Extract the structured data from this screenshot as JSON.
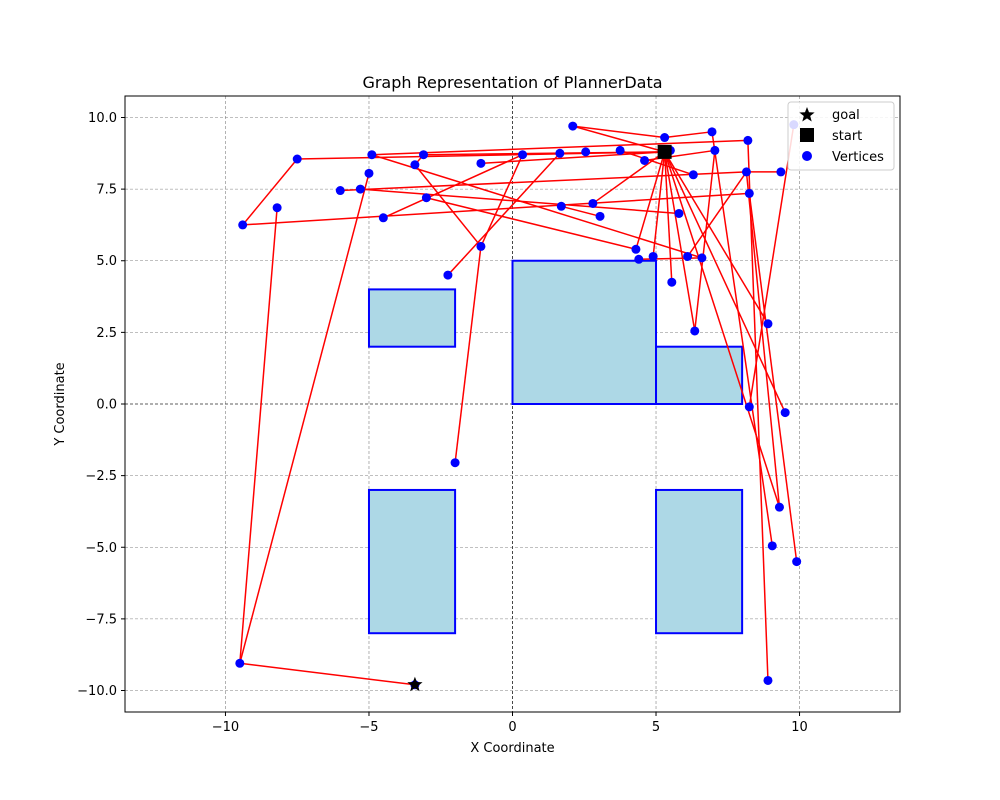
{
  "chart_data": {
    "type": "scatter",
    "title": "Graph Representation of PlannerData",
    "xlabel": "X Coordinate",
    "ylabel": "Y Coordinate",
    "xlim": [
      -13.5,
      13.5
    ],
    "ylim": [
      -10.75,
      10.75
    ],
    "xticks": [
      -10,
      -5,
      0,
      5,
      10
    ],
    "xtick_labels": [
      "−10",
      "−5",
      "0",
      "5",
      "10"
    ],
    "yticks": [
      -10,
      -7.5,
      -5,
      -2.5,
      0,
      2.5,
      5,
      7.5,
      10
    ],
    "ytick_labels": [
      "−10.0",
      "−7.5",
      "−5.0",
      "−2.5",
      "0.0",
      "2.5",
      "5.0",
      "7.5",
      "10.0"
    ],
    "grid": true,
    "legend_position": "top-right",
    "legend": [
      "goal",
      "start",
      "Vertices"
    ],
    "colors": {
      "edge": "#ff0000",
      "vertex_fill": "#0000ff",
      "obstacle_fill": "#add8e6",
      "obstacle_edge": "#0000ff",
      "grid": "#808080",
      "marker": "#000000"
    },
    "obstacles": [
      {
        "x": -5,
        "y": 2,
        "w": 3,
        "h": 2
      },
      {
        "x": 0,
        "y": 0,
        "w": 5,
        "h": 5
      },
      {
        "x": 5,
        "y": 0,
        "w": 3,
        "h": 2
      },
      {
        "x": -5,
        "y": -8,
        "w": 3,
        "h": 5
      },
      {
        "x": 5,
        "y": -8,
        "w": 3,
        "h": 5
      }
    ],
    "goal": [
      -3.4,
      -9.8
    ],
    "start": [
      5.3,
      8.8
    ],
    "vertices": [
      [
        -3.4,
        -9.8
      ],
      [
        -9.5,
        -9.05
      ],
      [
        -8.2,
        6.85
      ],
      [
        -9.4,
        6.25
      ],
      [
        -7.5,
        8.55
      ],
      [
        -6.0,
        7.45
      ],
      [
        -5.3,
        7.5
      ],
      [
        -5.0,
        8.05
      ],
      [
        -4.9,
        8.7
      ],
      [
        -4.5,
        6.5
      ],
      [
        -3.4,
        8.35
      ],
      [
        -3.1,
        8.7
      ],
      [
        -3.0,
        7.2
      ],
      [
        -2.25,
        4.5
      ],
      [
        -2.0,
        -2.05
      ],
      [
        -1.1,
        8.4
      ],
      [
        -1.1,
        5.5
      ],
      [
        0.35,
        8.7
      ],
      [
        1.65,
        8.75
      ],
      [
        1.7,
        6.9
      ],
      [
        2.1,
        9.7
      ],
      [
        2.55,
        8.8
      ],
      [
        2.8,
        7.0
      ],
      [
        3.05,
        6.55
      ],
      [
        3.75,
        8.85
      ],
      [
        4.3,
        5.4
      ],
      [
        4.4,
        5.05
      ],
      [
        4.6,
        8.5
      ],
      [
        4.9,
        5.15
      ],
      [
        5.3,
        9.3
      ],
      [
        5.5,
        8.85
      ],
      [
        5.55,
        4.25
      ],
      [
        5.8,
        6.65
      ],
      [
        6.1,
        5.15
      ],
      [
        6.3,
        8.0
      ],
      [
        6.35,
        2.55
      ],
      [
        6.6,
        5.1
      ],
      [
        6.95,
        9.5
      ],
      [
        7.05,
        8.85
      ],
      [
        8.15,
        8.1
      ],
      [
        8.2,
        9.2
      ],
      [
        8.25,
        7.35
      ],
      [
        8.25,
        -0.1
      ],
      [
        8.9,
        2.8
      ],
      [
        8.9,
        -9.65
      ],
      [
        9.05,
        -4.95
      ],
      [
        9.3,
        -3.6
      ],
      [
        9.35,
        8.1
      ],
      [
        9.5,
        -0.3
      ],
      [
        9.8,
        9.75
      ],
      [
        9.9,
        -5.5
      ]
    ],
    "edges": [
      [
        [
          -3.4,
          -9.8
        ],
        [
          -9.5,
          -9.05
        ]
      ],
      [
        [
          -9.5,
          -9.05
        ],
        [
          -8.2,
          6.85
        ]
      ],
      [
        [
          -9.5,
          -9.05
        ],
        [
          -5.0,
          8.05
        ]
      ],
      [
        [
          -9.4,
          6.25
        ],
        [
          8.25,
          7.35
        ]
      ],
      [
        [
          -7.5,
          8.55
        ],
        [
          5.3,
          8.8
        ]
      ],
      [
        [
          -7.5,
          8.55
        ],
        [
          -9.4,
          6.25
        ]
      ],
      [
        [
          -6.0,
          7.45
        ],
        [
          8.15,
          8.1
        ]
      ],
      [
        [
          -5.3,
          7.5
        ],
        [
          5.8,
          6.65
        ]
      ],
      [
        [
          -4.9,
          8.7
        ],
        [
          6.6,
          5.1
        ]
      ],
      [
        [
          -4.9,
          8.7
        ],
        [
          8.2,
          9.2
        ]
      ],
      [
        [
          -4.5,
          6.5
        ],
        [
          0.35,
          8.7
        ]
      ],
      [
        [
          -3.1,
          8.7
        ],
        [
          5.3,
          8.8
        ]
      ],
      [
        [
          -3.1,
          8.7
        ],
        [
          -3.4,
          8.35
        ]
      ],
      [
        [
          -3.4,
          8.35
        ],
        [
          -1.1,
          5.5
        ]
      ],
      [
        [
          -3.0,
          7.2
        ],
        [
          4.3,
          5.4
        ]
      ],
      [
        [
          -2.25,
          4.5
        ],
        [
          1.65,
          8.75
        ]
      ],
      [
        [
          -2.0,
          -2.05
        ],
        [
          -1.1,
          5.5
        ]
      ],
      [
        [
          -1.1,
          8.4
        ],
        [
          5.3,
          8.8
        ]
      ],
      [
        [
          -1.1,
          5.5
        ],
        [
          0.35,
          8.7
        ]
      ],
      [
        [
          1.7,
          6.9
        ],
        [
          3.05,
          6.55
        ]
      ],
      [
        [
          2.1,
          9.7
        ],
        [
          5.3,
          8.8
        ]
      ],
      [
        [
          2.1,
          9.7
        ],
        [
          5.3,
          9.3
        ]
      ],
      [
        [
          5.3,
          9.3
        ],
        [
          6.95,
          9.5
        ]
      ],
      [
        [
          6.95,
          9.5
        ],
        [
          9.05,
          -4.95
        ]
      ],
      [
        [
          2.8,
          7.0
        ],
        [
          5.3,
          8.8
        ]
      ],
      [
        [
          4.4,
          5.05
        ],
        [
          6.6,
          5.1
        ]
      ],
      [
        [
          4.3,
          5.4
        ],
        [
          5.3,
          8.8
        ]
      ],
      [
        [
          4.9,
          5.15
        ],
        [
          5.3,
          8.8
        ]
      ],
      [
        [
          5.3,
          8.8
        ],
        [
          6.35,
          2.55
        ]
      ],
      [
        [
          5.3,
          8.8
        ],
        [
          5.55,
          4.25
        ]
      ],
      [
        [
          5.3,
          8.8
        ],
        [
          8.9,
          2.8
        ]
      ],
      [
        [
          5.3,
          8.8
        ],
        [
          9.5,
          -0.3
        ]
      ],
      [
        [
          5.3,
          8.8
        ],
        [
          9.3,
          -3.6
        ]
      ],
      [
        [
          6.35,
          2.55
        ],
        [
          7.05,
          8.85
        ]
      ],
      [
        [
          6.1,
          5.15
        ],
        [
          8.15,
          8.1
        ]
      ],
      [
        [
          8.15,
          8.1
        ],
        [
          9.35,
          8.1
        ]
      ],
      [
        [
          8.15,
          8.1
        ],
        [
          9.3,
          -3.6
        ]
      ],
      [
        [
          8.2,
          9.2
        ],
        [
          8.9,
          -9.65
        ]
      ],
      [
        [
          9.9,
          -5.5
        ],
        [
          8.25,
          7.35
        ]
      ],
      [
        [
          8.25,
          -0.1
        ],
        [
          9.8,
          9.75
        ]
      ],
      [
        [
          4.6,
          8.5
        ],
        [
          7.05,
          8.85
        ]
      ],
      [
        [
          3.75,
          8.85
        ],
        [
          6.3,
          8.0
        ]
      ]
    ]
  }
}
